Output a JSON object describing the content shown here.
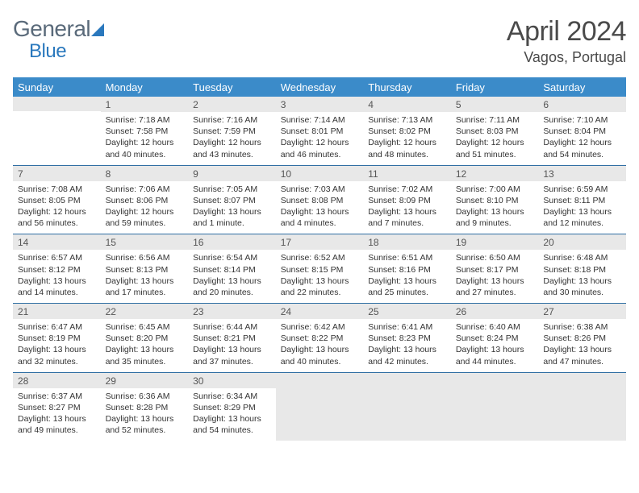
{
  "logo": {
    "text1": "General",
    "text2": "Blue"
  },
  "header": {
    "month": "April 2024",
    "location": "Vagos, Portugal"
  },
  "colors": {
    "header_bg": "#3b8bc9",
    "header_fg": "#ffffff",
    "daynum_bg": "#e8e8e8",
    "border": "#2f6ea3",
    "text": "#333333",
    "logo_grey": "#5a6a7a",
    "logo_blue": "#2a78bd"
  },
  "weekdays": [
    "Sunday",
    "Monday",
    "Tuesday",
    "Wednesday",
    "Thursday",
    "Friday",
    "Saturday"
  ],
  "weeks": [
    [
      null,
      {
        "n": "1",
        "l1": "Sunrise: 7:18 AM",
        "l2": "Sunset: 7:58 PM",
        "l3": "Daylight: 12 hours",
        "l4": "and 40 minutes."
      },
      {
        "n": "2",
        "l1": "Sunrise: 7:16 AM",
        "l2": "Sunset: 7:59 PM",
        "l3": "Daylight: 12 hours",
        "l4": "and 43 minutes."
      },
      {
        "n": "3",
        "l1": "Sunrise: 7:14 AM",
        "l2": "Sunset: 8:01 PM",
        "l3": "Daylight: 12 hours",
        "l4": "and 46 minutes."
      },
      {
        "n": "4",
        "l1": "Sunrise: 7:13 AM",
        "l2": "Sunset: 8:02 PM",
        "l3": "Daylight: 12 hours",
        "l4": "and 48 minutes."
      },
      {
        "n": "5",
        "l1": "Sunrise: 7:11 AM",
        "l2": "Sunset: 8:03 PM",
        "l3": "Daylight: 12 hours",
        "l4": "and 51 minutes."
      },
      {
        "n": "6",
        "l1": "Sunrise: 7:10 AM",
        "l2": "Sunset: 8:04 PM",
        "l3": "Daylight: 12 hours",
        "l4": "and 54 minutes."
      }
    ],
    [
      {
        "n": "7",
        "l1": "Sunrise: 7:08 AM",
        "l2": "Sunset: 8:05 PM",
        "l3": "Daylight: 12 hours",
        "l4": "and 56 minutes."
      },
      {
        "n": "8",
        "l1": "Sunrise: 7:06 AM",
        "l2": "Sunset: 8:06 PM",
        "l3": "Daylight: 12 hours",
        "l4": "and 59 minutes."
      },
      {
        "n": "9",
        "l1": "Sunrise: 7:05 AM",
        "l2": "Sunset: 8:07 PM",
        "l3": "Daylight: 13 hours",
        "l4": "and 1 minute."
      },
      {
        "n": "10",
        "l1": "Sunrise: 7:03 AM",
        "l2": "Sunset: 8:08 PM",
        "l3": "Daylight: 13 hours",
        "l4": "and 4 minutes."
      },
      {
        "n": "11",
        "l1": "Sunrise: 7:02 AM",
        "l2": "Sunset: 8:09 PM",
        "l3": "Daylight: 13 hours",
        "l4": "and 7 minutes."
      },
      {
        "n": "12",
        "l1": "Sunrise: 7:00 AM",
        "l2": "Sunset: 8:10 PM",
        "l3": "Daylight: 13 hours",
        "l4": "and 9 minutes."
      },
      {
        "n": "13",
        "l1": "Sunrise: 6:59 AM",
        "l2": "Sunset: 8:11 PM",
        "l3": "Daylight: 13 hours",
        "l4": "and 12 minutes."
      }
    ],
    [
      {
        "n": "14",
        "l1": "Sunrise: 6:57 AM",
        "l2": "Sunset: 8:12 PM",
        "l3": "Daylight: 13 hours",
        "l4": "and 14 minutes."
      },
      {
        "n": "15",
        "l1": "Sunrise: 6:56 AM",
        "l2": "Sunset: 8:13 PM",
        "l3": "Daylight: 13 hours",
        "l4": "and 17 minutes."
      },
      {
        "n": "16",
        "l1": "Sunrise: 6:54 AM",
        "l2": "Sunset: 8:14 PM",
        "l3": "Daylight: 13 hours",
        "l4": "and 20 minutes."
      },
      {
        "n": "17",
        "l1": "Sunrise: 6:52 AM",
        "l2": "Sunset: 8:15 PM",
        "l3": "Daylight: 13 hours",
        "l4": "and 22 minutes."
      },
      {
        "n": "18",
        "l1": "Sunrise: 6:51 AM",
        "l2": "Sunset: 8:16 PM",
        "l3": "Daylight: 13 hours",
        "l4": "and 25 minutes."
      },
      {
        "n": "19",
        "l1": "Sunrise: 6:50 AM",
        "l2": "Sunset: 8:17 PM",
        "l3": "Daylight: 13 hours",
        "l4": "and 27 minutes."
      },
      {
        "n": "20",
        "l1": "Sunrise: 6:48 AM",
        "l2": "Sunset: 8:18 PM",
        "l3": "Daylight: 13 hours",
        "l4": "and 30 minutes."
      }
    ],
    [
      {
        "n": "21",
        "l1": "Sunrise: 6:47 AM",
        "l2": "Sunset: 8:19 PM",
        "l3": "Daylight: 13 hours",
        "l4": "and 32 minutes."
      },
      {
        "n": "22",
        "l1": "Sunrise: 6:45 AM",
        "l2": "Sunset: 8:20 PM",
        "l3": "Daylight: 13 hours",
        "l4": "and 35 minutes."
      },
      {
        "n": "23",
        "l1": "Sunrise: 6:44 AM",
        "l2": "Sunset: 8:21 PM",
        "l3": "Daylight: 13 hours",
        "l4": "and 37 minutes."
      },
      {
        "n": "24",
        "l1": "Sunrise: 6:42 AM",
        "l2": "Sunset: 8:22 PM",
        "l3": "Daylight: 13 hours",
        "l4": "and 40 minutes."
      },
      {
        "n": "25",
        "l1": "Sunrise: 6:41 AM",
        "l2": "Sunset: 8:23 PM",
        "l3": "Daylight: 13 hours",
        "l4": "and 42 minutes."
      },
      {
        "n": "26",
        "l1": "Sunrise: 6:40 AM",
        "l2": "Sunset: 8:24 PM",
        "l3": "Daylight: 13 hours",
        "l4": "and 44 minutes."
      },
      {
        "n": "27",
        "l1": "Sunrise: 6:38 AM",
        "l2": "Sunset: 8:26 PM",
        "l3": "Daylight: 13 hours",
        "l4": "and 47 minutes."
      }
    ],
    [
      {
        "n": "28",
        "l1": "Sunrise: 6:37 AM",
        "l2": "Sunset: 8:27 PM",
        "l3": "Daylight: 13 hours",
        "l4": "and 49 minutes."
      },
      {
        "n": "29",
        "l1": "Sunrise: 6:36 AM",
        "l2": "Sunset: 8:28 PM",
        "l3": "Daylight: 13 hours",
        "l4": "and 52 minutes."
      },
      {
        "n": "30",
        "l1": "Sunrise: 6:34 AM",
        "l2": "Sunset: 8:29 PM",
        "l3": "Daylight: 13 hours",
        "l4": "and 54 minutes."
      },
      {
        "grey": true
      },
      {
        "grey": true
      },
      {
        "grey": true
      },
      {
        "grey": true
      }
    ]
  ]
}
